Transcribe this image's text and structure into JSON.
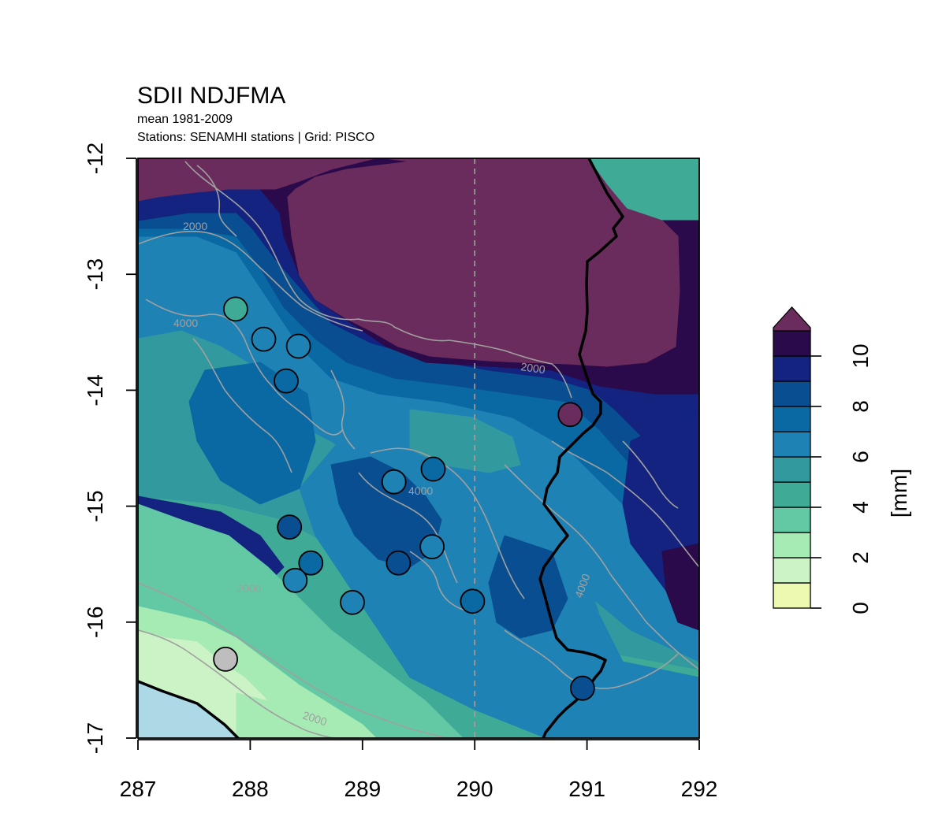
{
  "title": "SDII NDJFMA",
  "subtitle_1": "mean 1981-2009",
  "subtitle_2": "Stations: SENAMHI stations | Grid: PISCO",
  "x_ticks": [
    "287",
    "288",
    "289",
    "290",
    "291",
    "292"
  ],
  "y_ticks": [
    "-12",
    "-13",
    "-14",
    "-15",
    "-16",
    "-17"
  ],
  "contour_labels": [
    "2000",
    "4000",
    "2000",
    "4000",
    "4000",
    "2000",
    "2000"
  ],
  "colors": {
    "sea": "#add8e6",
    "boundary": "#000000",
    "contour": "#a0a0a0",
    "dashed_line": "#a0a0a0",
    "na_station": "#bebebe"
  },
  "chart_data": {
    "type": "map",
    "xlim": [
      287,
      292
    ],
    "ylim": [
      -17,
      -12
    ],
    "legend": {
      "label": "[mm]",
      "placement": "right",
      "ticks": [
        "0",
        "2",
        "4",
        "6",
        "8",
        "10"
      ],
      "breaks": [
        0,
        1,
        2,
        3,
        4,
        5,
        6,
        7,
        8,
        9,
        10,
        11,
        12
      ],
      "colors": [
        "#edf8b1",
        "#ccf3c5",
        "#a5ebb3",
        "#63c8a4",
        "#3fab96",
        "#32999f",
        "#1f82b4",
        "#0a68a3",
        "#084e90",
        "#13237f",
        "#2a0a4a",
        "#6a2c5c"
      ],
      "overflow_arrow": true
    },
    "vertical_reference_line": 290,
    "stations": [
      {
        "lon": 287.87,
        "lat": -13.3,
        "value": 4.5
      },
      {
        "lon": 288.12,
        "lat": -13.56,
        "value": 6.0
      },
      {
        "lon": 288.43,
        "lat": -13.62,
        "value": 6.5
      },
      {
        "lon": 288.32,
        "lat": -13.92,
        "value": 7.2
      },
      {
        "lon": 290.85,
        "lat": -14.21,
        "value": 11.5
      },
      {
        "lon": 289.63,
        "lat": -14.68,
        "value": 7.3
      },
      {
        "lon": 289.28,
        "lat": -14.79,
        "value": 6.4
      },
      {
        "lon": 288.35,
        "lat": -15.18,
        "value": 8.2
      },
      {
        "lon": 289.62,
        "lat": -15.35,
        "value": 6.8
      },
      {
        "lon": 288.54,
        "lat": -15.49,
        "value": 7.2
      },
      {
        "lon": 289.32,
        "lat": -15.49,
        "value": 8.4
      },
      {
        "lon": 288.4,
        "lat": -15.64,
        "value": 6.6
      },
      {
        "lon": 288.91,
        "lat": -15.83,
        "value": 6.3
      },
      {
        "lon": 289.98,
        "lat": -15.82,
        "value": 7.3
      },
      {
        "lon": 287.78,
        "lat": -16.32,
        "value": null
      },
      {
        "lon": 290.96,
        "lat": -16.57,
        "value": 8.6
      }
    ]
  }
}
